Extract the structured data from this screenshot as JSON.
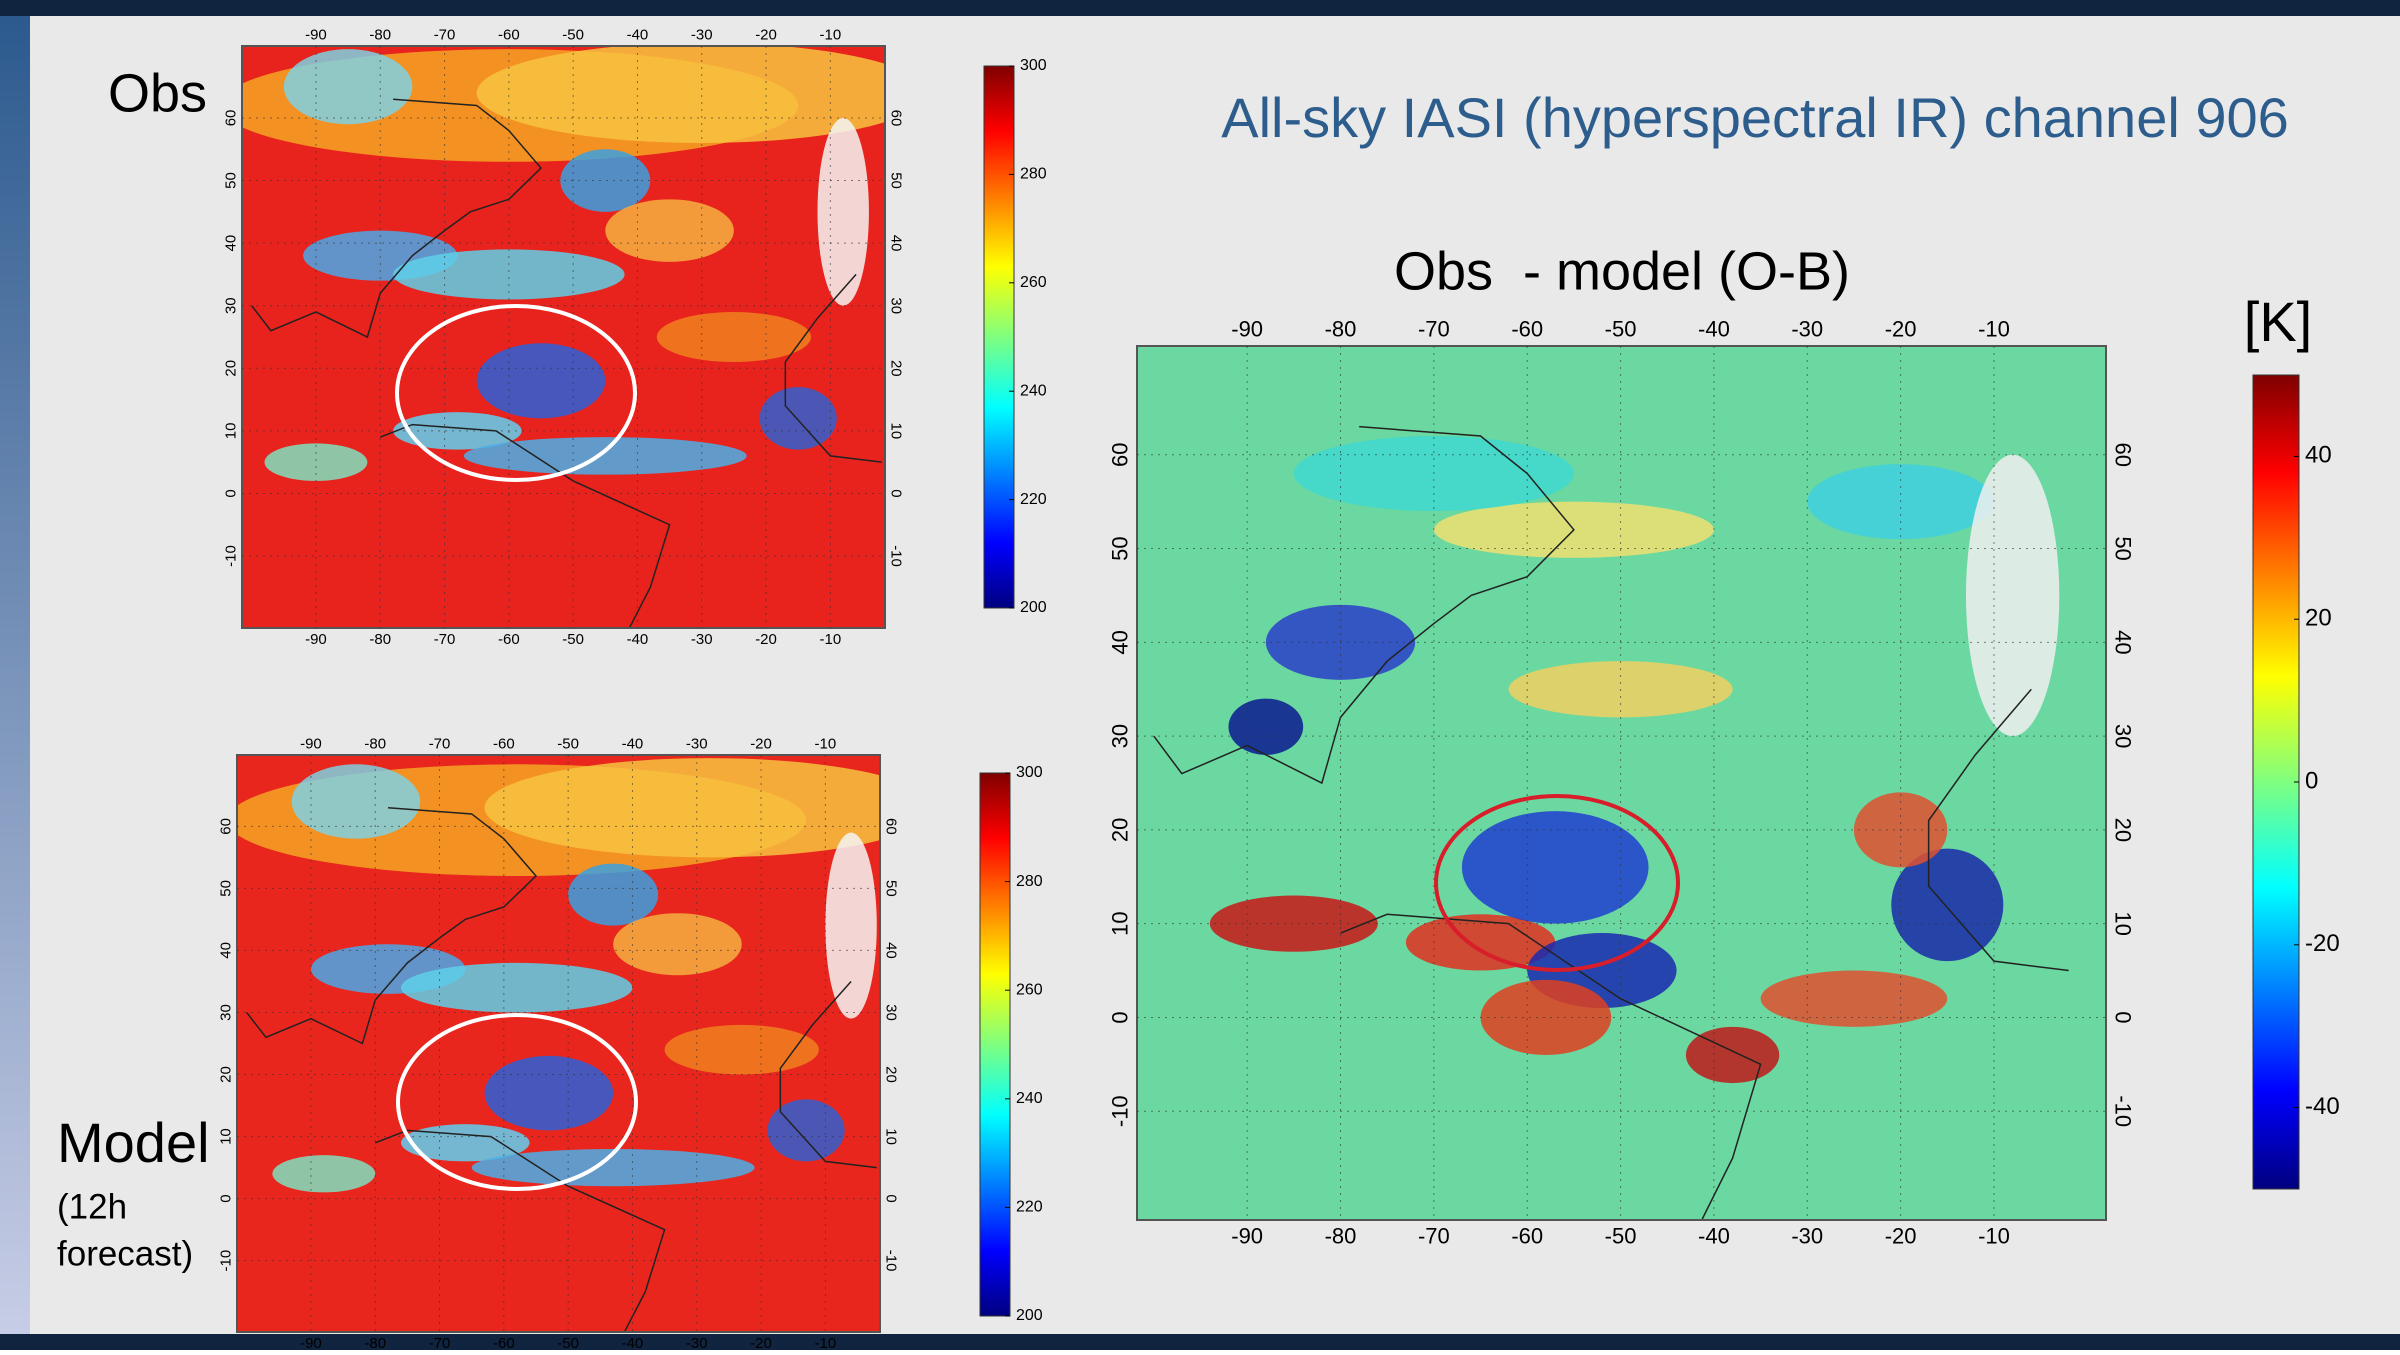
{
  "title": "All-sky IASI (hyperspectral IR) channel 906",
  "obs": {
    "label": "Obs",
    "lon_ticks": [
      -90,
      -80,
      -70,
      -60,
      -50,
      -40,
      -30,
      -20,
      -10
    ],
    "lat_ticks": [
      -10,
      0,
      10,
      20,
      30,
      40,
      50,
      60
    ],
    "colorbar_ticks": [
      200,
      220,
      240,
      260,
      280,
      300
    ]
  },
  "model": {
    "label": "Model",
    "note_lines": [
      "(12h",
      "forecast)"
    ],
    "lon_ticks": [
      -90,
      -80,
      -70,
      -60,
      -50,
      -40,
      -30,
      -20,
      -10
    ],
    "lat_ticks": [
      -10,
      0,
      10,
      20,
      30,
      40,
      50,
      60
    ],
    "colorbar_ticks": [
      200,
      220,
      240,
      260,
      280,
      300
    ]
  },
  "diff": {
    "title": "Obs  - model (O-B)",
    "unit": "[K]",
    "lon_ticks": [
      -90,
      -80,
      -70,
      -60,
      -50,
      -40,
      -30,
      -20,
      -10
    ],
    "lat_ticks": [
      -10,
      0,
      10,
      20,
      30,
      40,
      50,
      60
    ],
    "colorbar_ticks": [
      -40,
      -20,
      0,
      20,
      40
    ]
  }
}
